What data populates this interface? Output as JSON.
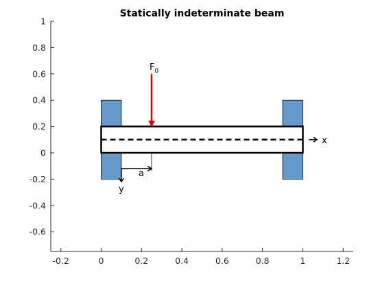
{
  "chart_data": {
    "type": "diagram",
    "title": "Statically indeterminate beam",
    "xlabel": "",
    "ylabel": "",
    "xlim": [
      -0.25,
      1.25
    ],
    "ylim": [
      -0.75,
      1.0
    ],
    "grid": false,
    "xticks": [
      -0.2,
      0,
      0.2,
      0.4,
      0.6,
      0.8,
      1,
      1.2
    ],
    "xtick_labels": [
      "-0.2",
      "0",
      "0.2",
      "0.4",
      "0.6",
      "0.8",
      "1",
      "1.2"
    ],
    "yticks": [
      -0.6,
      -0.4,
      -0.2,
      0,
      0.2,
      0.4,
      0.6,
      0.8,
      1
    ],
    "ytick_labels": [
      "-0.6",
      "-0.4",
      "-0.2",
      "0",
      "0.2",
      "0.4",
      "0.6",
      "0.8",
      "1"
    ],
    "supports": [
      {
        "x": [
          0,
          0.1
        ],
        "y": [
          -0.2,
          0.4
        ],
        "color": "#6699cc"
      },
      {
        "x": [
          0.9,
          1.0
        ],
        "y": [
          -0.2,
          0.4
        ],
        "color": "#6699cc"
      }
    ],
    "beam": {
      "x": [
        0,
        1.0
      ],
      "y": [
        0,
        0.2
      ],
      "edge_color": "#000000"
    },
    "centerline": {
      "x": [
        0,
        1.0
      ],
      "y": 0.1,
      "style": "dashed"
    },
    "force": {
      "x": 0.25,
      "y_start": 0.6,
      "y_end": 0.2,
      "color": "#dd0000"
    },
    "force_label": {
      "main": "F",
      "subscript": "0"
    },
    "x_axis_arrow": {
      "x_start": 1.03,
      "x_end": 1.07,
      "y": 0.1,
      "label": "x"
    },
    "y_axis_arrow": {
      "x": 0.1,
      "y_start": -0.12,
      "y_end": -0.22,
      "label": "y"
    },
    "dimension_a": {
      "x_start": 0.1,
      "x_end": 0.25,
      "y": -0.12,
      "label": "a"
    }
  }
}
